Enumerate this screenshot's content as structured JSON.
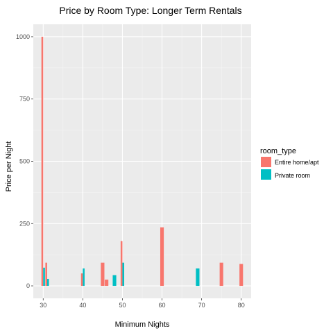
{
  "chart_data": {
    "type": "bar",
    "title": "Price by Room Type: Longer Term Rentals",
    "xlabel": "Minimum Nights",
    "ylabel": "Price per Night",
    "xlim": [
      27.5,
      82.5
    ],
    "ylim": [
      -50,
      1050
    ],
    "x_ticks": [
      30,
      40,
      50,
      60,
      70,
      80
    ],
    "y_ticks": [
      0,
      250,
      500,
      750,
      1000
    ],
    "bar_width_units": 0.9,
    "legend": {
      "title": "room_type",
      "position": "right",
      "entries": [
        {
          "label": "Entire home/apt",
          "color": "#F8766D"
        },
        {
          "label": "Private room",
          "color": "#00BFC4"
        }
      ]
    },
    "series": [
      {
        "name": "Entire home/apt",
        "color": "#F8766D",
        "points": [
          {
            "x": 30,
            "y": 1000
          },
          {
            "x": 31,
            "y": 93
          },
          {
            "x": 40,
            "y": 50
          },
          {
            "x": 45,
            "y": 93
          },
          {
            "x": 46,
            "y": 25
          },
          {
            "x": 50,
            "y": 180
          },
          {
            "x": 60,
            "y": 235
          },
          {
            "x": 75,
            "y": 93
          },
          {
            "x": 80,
            "y": 88
          }
        ]
      },
      {
        "name": "Private room",
        "color": "#00BFC4",
        "points": [
          {
            "x": 30,
            "y": 73
          },
          {
            "x": 31,
            "y": 28
          },
          {
            "x": 40,
            "y": 70
          },
          {
            "x": 48,
            "y": 43
          },
          {
            "x": 50,
            "y": 93
          },
          {
            "x": 69,
            "y": 70
          }
        ]
      }
    ]
  },
  "colors": {
    "panel_background": "#EBEBEB",
    "grid_major": "#FFFFFF",
    "grid_minor": "#F5F5F5"
  }
}
